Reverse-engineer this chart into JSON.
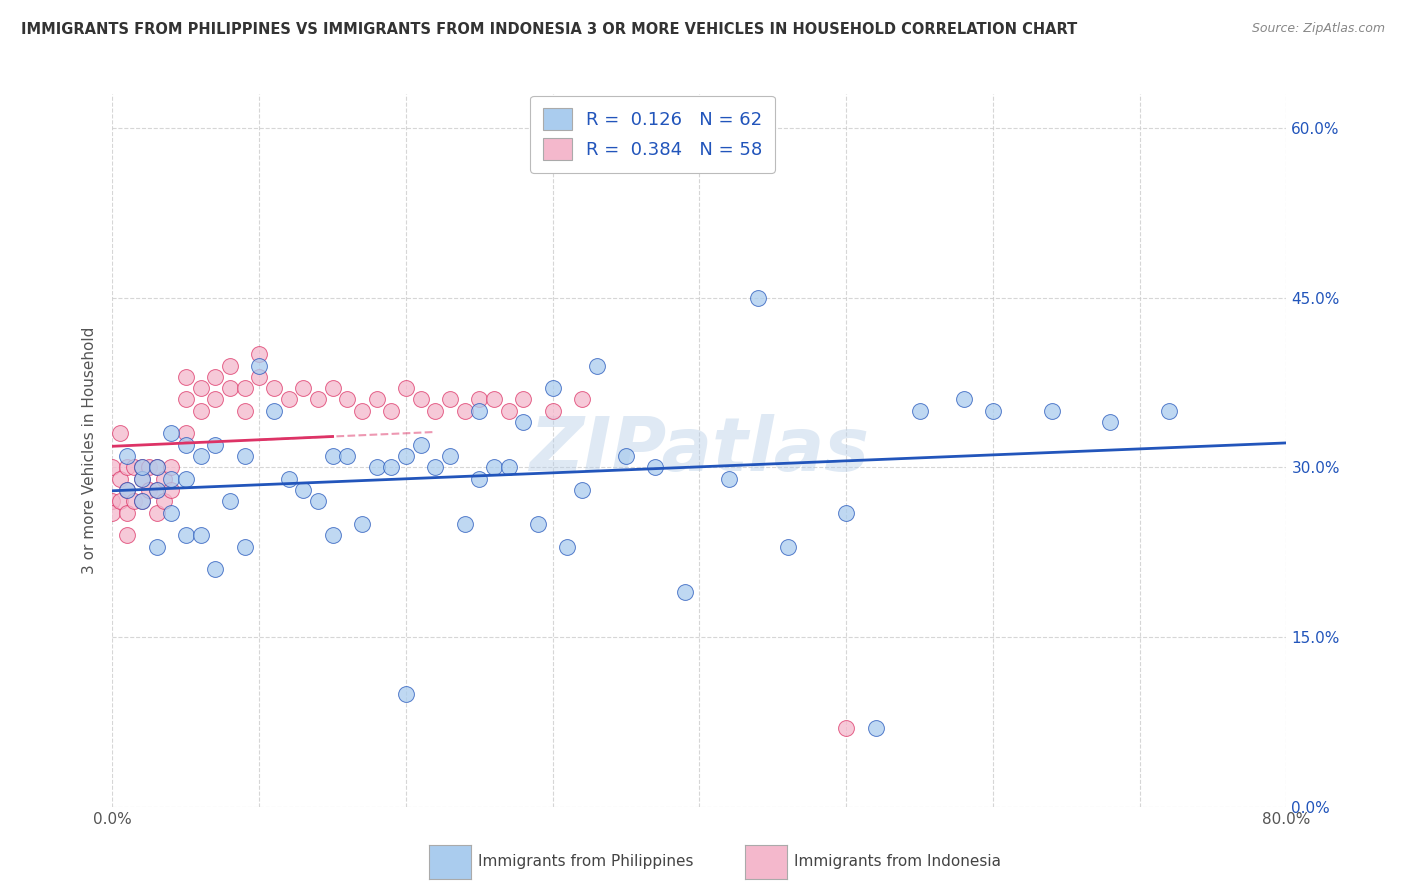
{
  "title": "IMMIGRANTS FROM PHILIPPINES VS IMMIGRANTS FROM INDONESIA 3 OR MORE VEHICLES IN HOUSEHOLD CORRELATION CHART",
  "source": "Source: ZipAtlas.com",
  "ylabel_label": "3 or more Vehicles in Household",
  "legend_label1": "Immigrants from Philippines",
  "legend_label2": "Immigrants from Indonesia",
  "R1": 0.126,
  "N1": 62,
  "R2": 0.384,
  "N2": 58,
  "color1": "#aaccee",
  "color2": "#f4b8cc",
  "line_color1": "#2255bb",
  "line_color2": "#dd3366",
  "watermark": "ZIPatlas",
  "background_color": "#ffffff",
  "grid_color": "#cccccc",
  "title_color": "#333333",
  "right_tick_color": "#2255bb",
  "xmin": 0.0,
  "xmax": 0.8,
  "ymin": 0.0,
  "ymax": 0.63,
  "philippines_x": [
    0.01,
    0.01,
    0.02,
    0.02,
    0.02,
    0.03,
    0.03,
    0.03,
    0.04,
    0.04,
    0.04,
    0.05,
    0.05,
    0.05,
    0.06,
    0.06,
    0.07,
    0.07,
    0.08,
    0.09,
    0.09,
    0.1,
    0.11,
    0.12,
    0.13,
    0.14,
    0.15,
    0.15,
    0.16,
    0.17,
    0.18,
    0.19,
    0.2,
    0.2,
    0.21,
    0.22,
    0.23,
    0.24,
    0.25,
    0.25,
    0.26,
    0.27,
    0.28,
    0.29,
    0.3,
    0.31,
    0.32,
    0.33,
    0.35,
    0.37,
    0.39,
    0.42,
    0.44,
    0.46,
    0.5,
    0.52,
    0.55,
    0.58,
    0.6,
    0.64,
    0.68,
    0.72
  ],
  "philippines_y": [
    0.31,
    0.28,
    0.29,
    0.27,
    0.3,
    0.28,
    0.3,
    0.23,
    0.26,
    0.29,
    0.33,
    0.24,
    0.32,
    0.29,
    0.24,
    0.31,
    0.21,
    0.32,
    0.27,
    0.31,
    0.23,
    0.39,
    0.35,
    0.29,
    0.28,
    0.27,
    0.31,
    0.24,
    0.31,
    0.25,
    0.3,
    0.3,
    0.1,
    0.31,
    0.32,
    0.3,
    0.31,
    0.25,
    0.29,
    0.35,
    0.3,
    0.3,
    0.34,
    0.25,
    0.37,
    0.23,
    0.28,
    0.39,
    0.31,
    0.3,
    0.19,
    0.29,
    0.45,
    0.23,
    0.26,
    0.07,
    0.35,
    0.36,
    0.35,
    0.35,
    0.34,
    0.35
  ],
  "indonesia_x": [
    0.0,
    0.0,
    0.0,
    0.005,
    0.005,
    0.005,
    0.01,
    0.01,
    0.01,
    0.01,
    0.015,
    0.015,
    0.02,
    0.02,
    0.02,
    0.025,
    0.025,
    0.03,
    0.03,
    0.03,
    0.035,
    0.035,
    0.04,
    0.04,
    0.05,
    0.05,
    0.05,
    0.06,
    0.06,
    0.07,
    0.07,
    0.08,
    0.08,
    0.09,
    0.09,
    0.1,
    0.1,
    0.11,
    0.12,
    0.13,
    0.14,
    0.15,
    0.16,
    0.17,
    0.18,
    0.19,
    0.2,
    0.21,
    0.22,
    0.23,
    0.24,
    0.25,
    0.26,
    0.27,
    0.28,
    0.3,
    0.32,
    0.5
  ],
  "indonesia_y": [
    0.3,
    0.27,
    0.26,
    0.33,
    0.29,
    0.27,
    0.3,
    0.28,
    0.26,
    0.24,
    0.3,
    0.27,
    0.3,
    0.29,
    0.27,
    0.3,
    0.28,
    0.3,
    0.28,
    0.26,
    0.29,
    0.27,
    0.3,
    0.28,
    0.33,
    0.36,
    0.38,
    0.35,
    0.37,
    0.36,
    0.38,
    0.37,
    0.39,
    0.35,
    0.37,
    0.38,
    0.4,
    0.37,
    0.36,
    0.37,
    0.36,
    0.37,
    0.36,
    0.35,
    0.36,
    0.35,
    0.37,
    0.36,
    0.35,
    0.36,
    0.35,
    0.36,
    0.36,
    0.35,
    0.36,
    0.35,
    0.36,
    0.07
  ]
}
